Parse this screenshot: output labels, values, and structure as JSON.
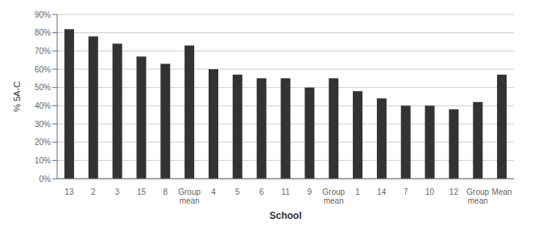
{
  "chart_data": {
    "type": "bar",
    "categories": [
      "13",
      "2",
      "3",
      "15",
      "8",
      "Group\nmean",
      "4",
      "5",
      "6",
      "11",
      "9",
      "Group\nmean",
      "1",
      "14",
      "7",
      "10",
      "12",
      "Group\nmean",
      "Mean"
    ],
    "values": [
      82,
      78,
      74,
      67,
      63,
      73,
      60,
      57,
      55,
      55,
      50,
      55,
      48,
      44,
      40,
      40,
      38,
      42,
      57
    ],
    "color": "#333333",
    "xlabel": "School",
    "ylabel": "% 5A-C",
    "ylim": [
      0,
      90
    ],
    "yticks": [
      {
        "value": 0,
        "label": "0%"
      },
      {
        "value": 10,
        "label": "10%"
      },
      {
        "value": 20,
        "label": "20%"
      },
      {
        "value": 30,
        "label": "30%"
      },
      {
        "value": 40,
        "label": "40%"
      },
      {
        "value": 50,
        "label": "50%"
      },
      {
        "value": 60,
        "label": "60%"
      },
      {
        "value": 70,
        "label": "70%"
      },
      {
        "value": 80,
        "label": "80%"
      },
      {
        "value": 90,
        "label": "90%"
      }
    ],
    "grid": true
  }
}
